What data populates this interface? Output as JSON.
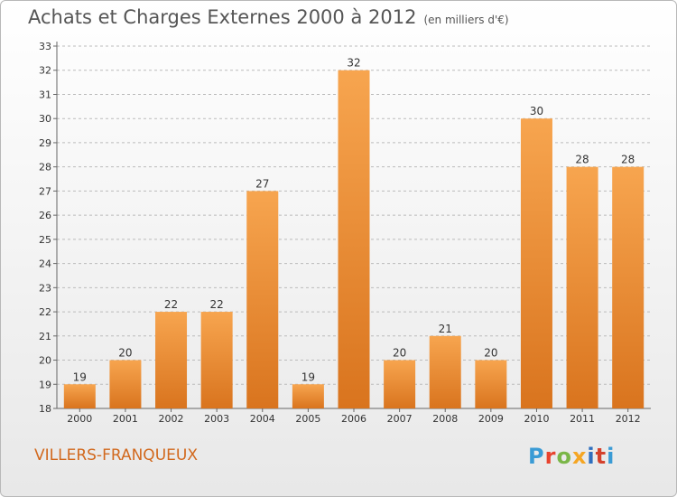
{
  "header": {
    "title": "Achats et Charges Externes 2000 à 2012",
    "subtitle": "(en milliers d'€)"
  },
  "footer": {
    "town": "VILLERS-FRANQUEUX",
    "logo": "Proxiti",
    "logo_colors": [
      "#3a9bd5",
      "#e8432e",
      "#7ab648",
      "#f5a623",
      "#2e6fbf",
      "#d4412c",
      "#3a9bd5"
    ]
  },
  "colors": {
    "bar_light": "#f7a54f",
    "bar_dark": "#d9741e",
    "grid": "#bbbbbb",
    "axis_text": "#333333",
    "title_text": "#555555",
    "town_text": "#d2691e"
  },
  "chart_data": {
    "type": "bar",
    "title": "Achats et Charges Externes 2000 à 2012",
    "subtitle": "(en milliers d'€)",
    "categories": [
      "2000",
      "2001",
      "2002",
      "2003",
      "2004",
      "2005",
      "2006",
      "2007",
      "2008",
      "2009",
      "2010",
      "2011",
      "2012"
    ],
    "values": [
      19,
      20,
      22,
      22,
      27,
      19,
      32,
      20,
      21,
      20,
      30,
      28,
      28
    ],
    "ylim": [
      18,
      33
    ],
    "yticks": [
      18,
      19,
      20,
      21,
      22,
      23,
      24,
      25,
      26,
      27,
      28,
      29,
      30,
      31,
      32,
      33
    ],
    "grid": "horizontal dashed",
    "legend": "none"
  }
}
